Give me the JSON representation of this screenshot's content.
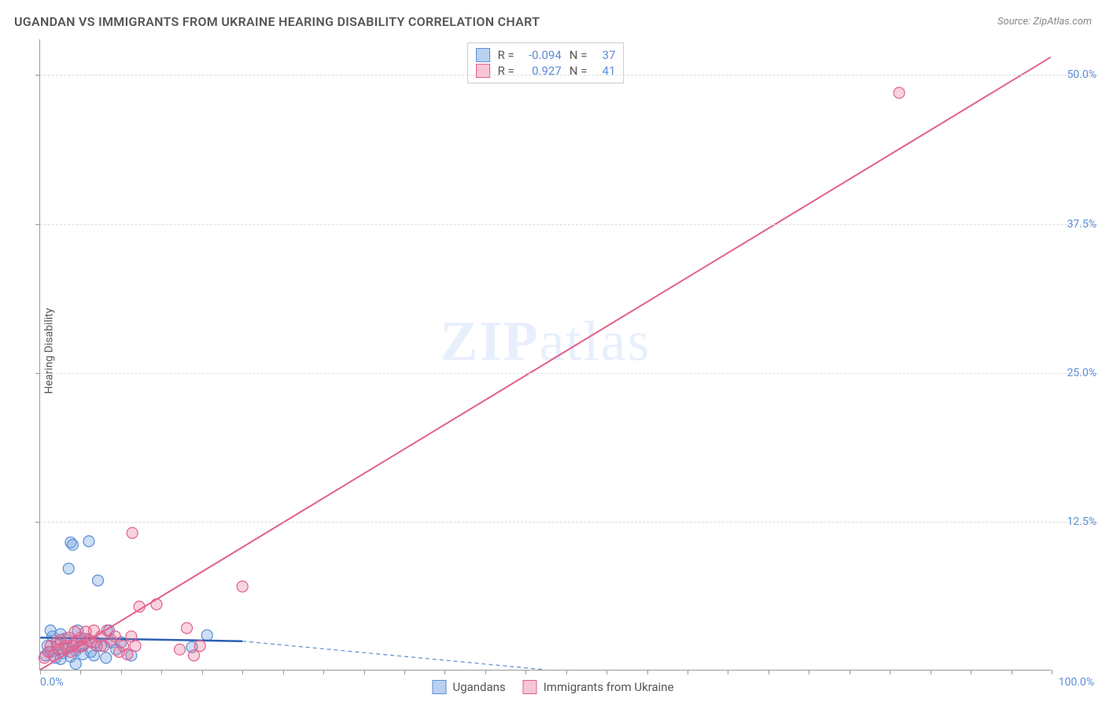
{
  "title": "UGANDAN VS IMMIGRANTS FROM UKRAINE HEARING DISABILITY CORRELATION CHART",
  "source": "Source: ZipAtlas.com",
  "ylabel": "Hearing Disability",
  "watermark_a": "ZIP",
  "watermark_b": "atlas",
  "chart": {
    "type": "scatter",
    "xlim": [
      0,
      100
    ],
    "ylim": [
      0,
      53
    ],
    "ytick_values": [
      12.5,
      25.0,
      37.5,
      50.0
    ],
    "ytick_labels": [
      "12.5%",
      "25.0%",
      "37.5%",
      "50.0%"
    ],
    "xmin_label": "0.0%",
    "xmax_label": "100.0%",
    "xtick_positions": [
      0,
      4,
      8,
      12,
      16,
      20,
      24,
      28,
      32,
      36,
      40,
      44,
      48,
      52,
      56,
      60,
      64,
      68,
      72,
      76,
      80,
      84,
      88,
      92,
      96,
      100
    ],
    "background_color": "#ffffff",
    "grid_color": "#dddddd",
    "series": [
      {
        "name": "Ugandans",
        "color_fill": "rgba(108,160,220,0.35)",
        "color_stroke": "#5b8dd6",
        "swatch_fill": "#b9d1ef",
        "swatch_border": "#5b8dd6",
        "R_label": "R =",
        "R": "-0.094",
        "N_label": "N =",
        "N": "37",
        "marker_radius": 7,
        "trend": {
          "x1": 0,
          "y1": 2.7,
          "x2": 20,
          "y2": 2.4,
          "color": "#2c5fb3",
          "width": 2.5
        },
        "trend_ext": {
          "x1": 20,
          "y1": 2.4,
          "x2": 50,
          "y2": 0.0,
          "color": "#6a93cf",
          "dash": "5,4",
          "width": 1.3
        },
        "points": [
          [
            0.5,
            1.2
          ],
          [
            0.7,
            2.0
          ],
          [
            1.0,
            1.5
          ],
          [
            1.2,
            2.8
          ],
          [
            1.0,
            3.3
          ],
          [
            1.5,
            1.0
          ],
          [
            1.8,
            2.1
          ],
          [
            2.0,
            3.0
          ],
          [
            2.2,
            1.4
          ],
          [
            2.4,
            2.6
          ],
          [
            2.6,
            1.8
          ],
          [
            2.8,
            8.5
          ],
          [
            3.0,
            10.7
          ],
          [
            3.2,
            10.5
          ],
          [
            3.3,
            2.2
          ],
          [
            3.5,
            1.6
          ],
          [
            3.7,
            3.3
          ],
          [
            4.0,
            2.0
          ],
          [
            4.2,
            1.3
          ],
          [
            4.5,
            2.6
          ],
          [
            4.8,
            10.8
          ],
          [
            5.0,
            1.5
          ],
          [
            5.3,
            1.2
          ],
          [
            5.5,
            2.3
          ],
          [
            5.7,
            7.5
          ],
          [
            6.0,
            2.0
          ],
          [
            6.5,
            1.0
          ],
          [
            6.8,
            3.3
          ],
          [
            7.0,
            2.3
          ],
          [
            7.5,
            1.7
          ],
          [
            8.0,
            2.3
          ],
          [
            2.0,
            0.9
          ],
          [
            3.0,
            1.1
          ],
          [
            3.5,
            0.5
          ],
          [
            9.0,
            1.2
          ],
          [
            16.5,
            2.9
          ],
          [
            15.0,
            1.9
          ]
        ]
      },
      {
        "name": "Immigrants from Ukraine",
        "color_fill": "rgba(232,110,150,0.30)",
        "color_stroke": "#e25f8b",
        "swatch_fill": "#f6c6d6",
        "swatch_border": "#e25f8b",
        "R_label": "R =",
        "R": "0.927",
        "N_label": "N =",
        "N": "41",
        "marker_radius": 7,
        "trend": {
          "x1": 0,
          "y1": 0.0,
          "x2": 100,
          "y2": 51.5,
          "color": "#e25f8b",
          "width": 2
        },
        "points": [
          [
            0.4,
            1.0
          ],
          [
            0.8,
            1.5
          ],
          [
            1.0,
            2.0
          ],
          [
            1.3,
            1.2
          ],
          [
            1.6,
            2.3
          ],
          [
            1.8,
            1.7
          ],
          [
            2.0,
            2.5
          ],
          [
            2.2,
            1.8
          ],
          [
            2.5,
            2.0
          ],
          [
            2.8,
            2.7
          ],
          [
            3.0,
            1.5
          ],
          [
            3.2,
            2.0
          ],
          [
            3.4,
            3.2
          ],
          [
            3.6,
            2.4
          ],
          [
            3.8,
            1.9
          ],
          [
            4.0,
            2.7
          ],
          [
            4.2,
            2.0
          ],
          [
            4.5,
            3.2
          ],
          [
            4.8,
            2.5
          ],
          [
            5.0,
            2.3
          ],
          [
            5.3,
            3.3
          ],
          [
            5.6,
            2.0
          ],
          [
            6.0,
            2.8
          ],
          [
            6.3,
            2.0
          ],
          [
            6.6,
            3.3
          ],
          [
            7.0,
            2.5
          ],
          [
            7.4,
            2.8
          ],
          [
            7.8,
            1.5
          ],
          [
            8.2,
            2.0
          ],
          [
            8.6,
            1.3
          ],
          [
            9.0,
            2.8
          ],
          [
            9.4,
            2.0
          ],
          [
            9.1,
            11.5
          ],
          [
            9.8,
            5.3
          ],
          [
            11.5,
            5.5
          ],
          [
            13.8,
            1.7
          ],
          [
            15.2,
            1.2
          ],
          [
            15.8,
            2.0
          ],
          [
            14.5,
            3.5
          ],
          [
            20.0,
            7.0
          ],
          [
            85.0,
            48.5
          ]
        ]
      }
    ]
  },
  "legend": {
    "items": [
      {
        "label": "Ugandans",
        "fill": "#b9d1ef",
        "border": "#5b8dd6"
      },
      {
        "label": "Immigrants from Ukraine",
        "fill": "#f6c6d6",
        "border": "#e25f8b"
      }
    ]
  }
}
